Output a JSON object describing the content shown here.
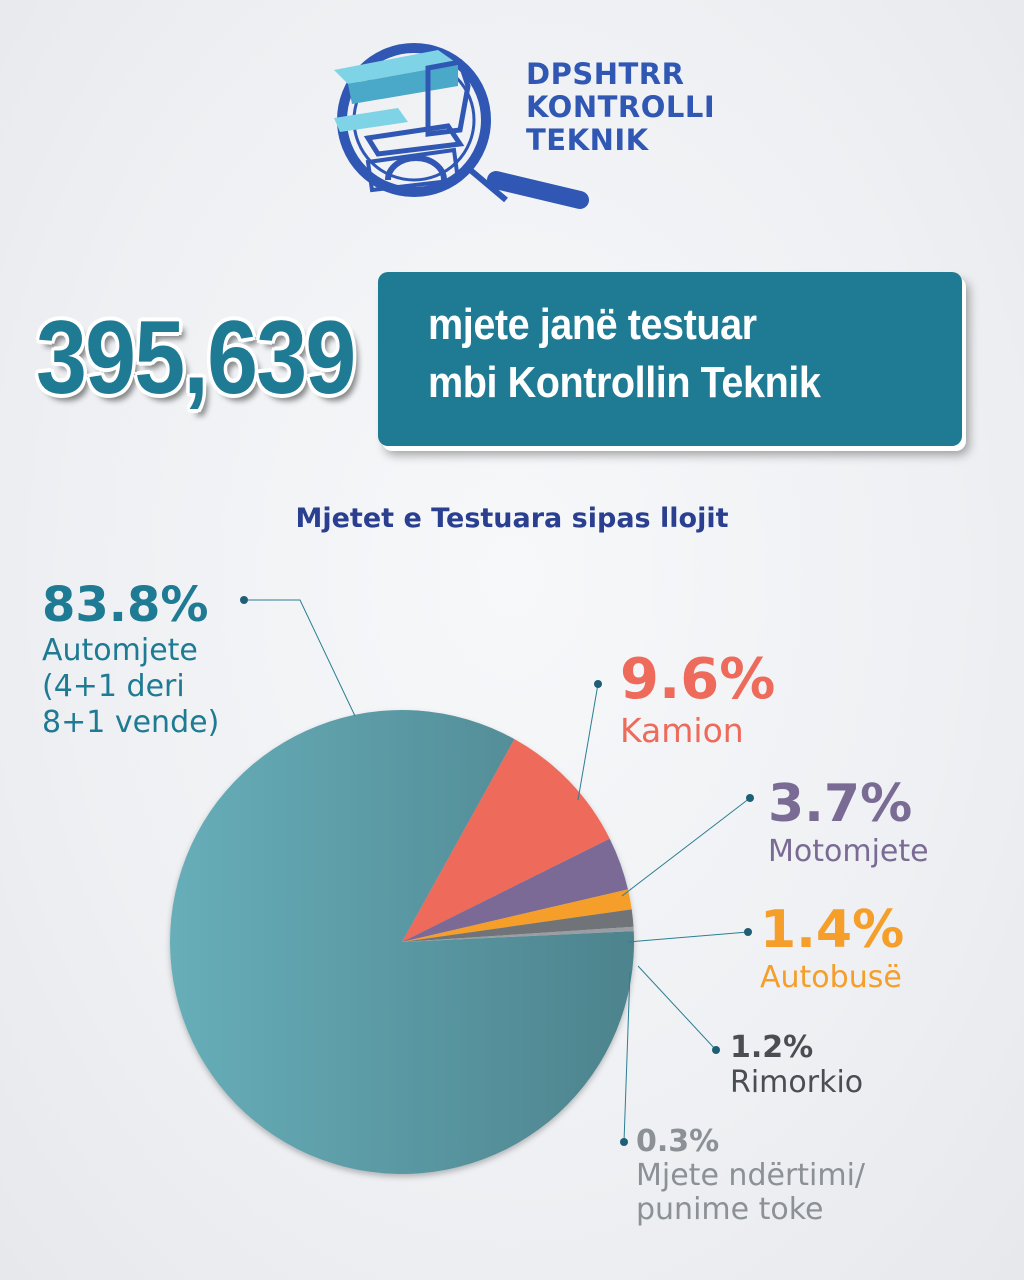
{
  "logo": {
    "lines": [
      "DPSHTRR",
      "KONTROLLI",
      "TEKNIK"
    ],
    "icon": "magnifier-road-icon",
    "color": "#2f57b3"
  },
  "headline": {
    "number": "395,639",
    "line1": "mjete janë testuar",
    "line2": "mbi Kontrollin Teknik",
    "box_color": "#1f7a93"
  },
  "chart_title": "Mjetet e Testuara sipas llojit",
  "chart_data": {
    "type": "pie",
    "title": "Mjetet e Testuara sipas llojit",
    "slices": [
      {
        "name": "Automjete (4+1 deri 8+1 vende)",
        "value": 83.8,
        "pct_label": "83.8%",
        "label_lines": [
          "Automjete",
          "(4+1 deri",
          "8+1 vende)"
        ],
        "color": "#5a9aa6",
        "text_color": "#1f7a93"
      },
      {
        "name": "Kamion",
        "value": 9.6,
        "pct_label": "9.6%",
        "label_lines": [
          "Kamion"
        ],
        "color": "#ee6a5a",
        "text_color": "#ee6a5a"
      },
      {
        "name": "Motomjete",
        "value": 3.7,
        "pct_label": "3.7%",
        "label_lines": [
          "Motomjete"
        ],
        "color": "#7a6b95",
        "text_color": "#7a6b95"
      },
      {
        "name": "Autobusë",
        "value": 1.4,
        "pct_label": "1.4%",
        "label_lines": [
          "Autobusë"
        ],
        "color": "#f59e2a",
        "text_color": "#f59e2a"
      },
      {
        "name": "Rimorkio",
        "value": 1.2,
        "pct_label": "1.2%",
        "label_lines": [
          "Rimorkio"
        ],
        "color": "#6f7378",
        "text_color": "#4a4e52"
      },
      {
        "name": "Mjete ndërtimi/punime toke",
        "value": 0.3,
        "pct_label": "0.3%",
        "label_lines": [
          "Mjete ndërtimi/",
          "punime toke"
        ],
        "color": "#9a9ea3",
        "text_color": "#8c9196"
      }
    ]
  }
}
